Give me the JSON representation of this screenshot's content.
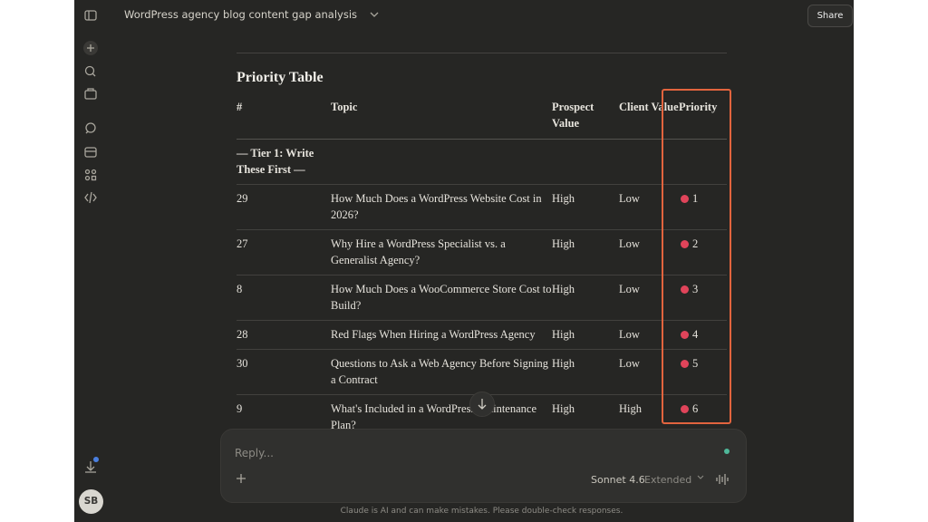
{
  "header": {
    "title": "WordPress agency blog content gap analysis",
    "share": "Share"
  },
  "sidebar": {
    "avatar": "SB"
  },
  "content": {
    "heading": "Priority Table",
    "table": {
      "columns": [
        "#",
        "Topic",
        "Prospect Value",
        "Client Value",
        "Priority"
      ],
      "tier": "— Tier 1: Write These First —",
      "rows": [
        [
          "29",
          "How Much Does a WordPress Website Cost in 2026?",
          "High",
          "Low",
          "1"
        ],
        [
          "27",
          "Why Hire a WordPress Specialist vs. a Generalist Agency?",
          "High",
          "Low",
          "2"
        ],
        [
          "8",
          "How Much Does a WooCommerce Store Cost to Build?",
          "High",
          "Low",
          "3"
        ],
        [
          "28",
          "Red Flags When Hiring a WordPress Agency",
          "High",
          "Low",
          "4"
        ],
        [
          "30",
          "Questions to Ask a Web Agency Before Signing a Contract",
          "High",
          "Low",
          "5"
        ],
        [
          "9",
          "What's Included in a WordPress Maintenance Plan?",
          "High",
          "High",
          "6"
        ]
      ]
    }
  },
  "composer": {
    "placeholder": "Reply...",
    "model": "Sonnet 4.6",
    "mode": "Extended"
  },
  "footer": "Claude is AI and can make mistakes. Please double-check responses."
}
